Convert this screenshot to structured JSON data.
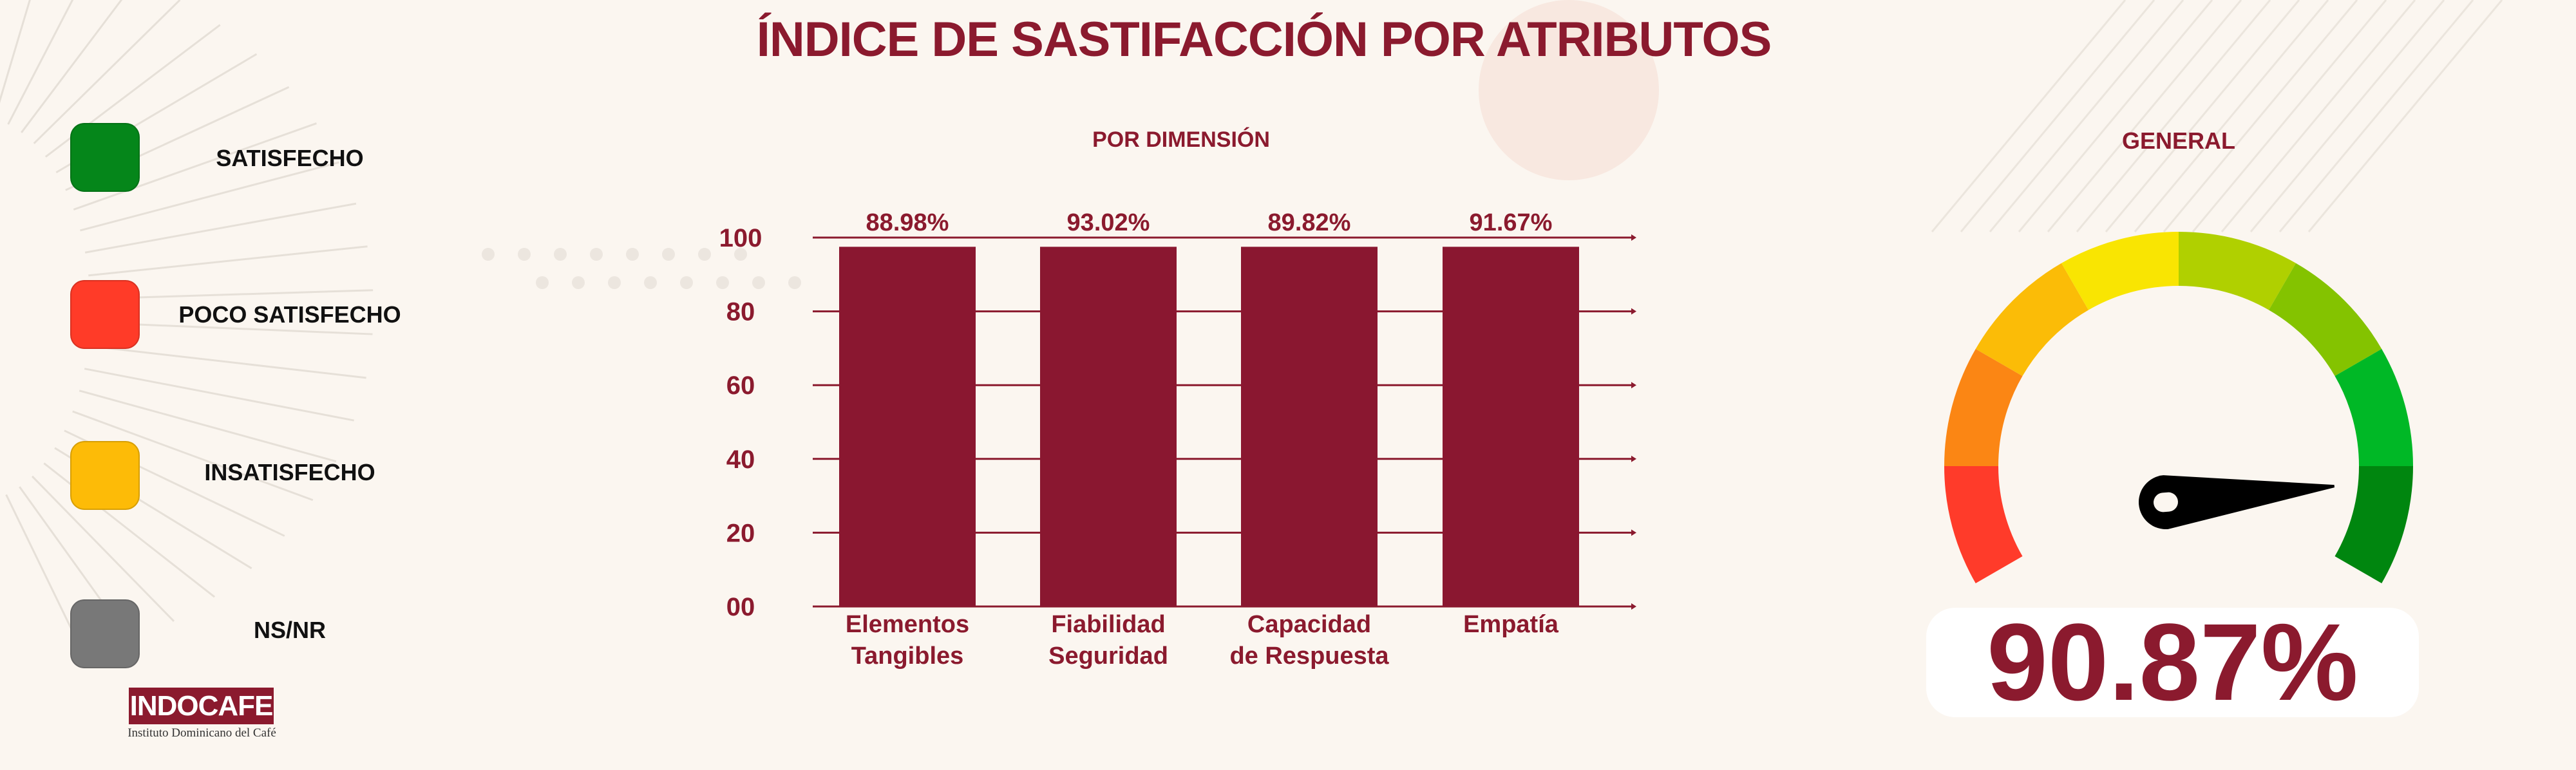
{
  "title": "ÍNDICE DE SASTIFACCIÓN POR ATRIBUTOS",
  "legend": [
    {
      "label": "SATISFECHO",
      "color": "#05861a"
    },
    {
      "label": "POCO SATISFECHO",
      "color": "#ff3b28"
    },
    {
      "label": "INSATISFECHO",
      "color": "#fdbb07"
    },
    {
      "label": "NS/NR",
      "color": "#787878"
    }
  ],
  "logo": {
    "name": "INDOCAFE",
    "subtitle": "Instituto Dominicano del Café"
  },
  "chart_data": [
    {
      "type": "bar",
      "title": "POR DIMENSIÓN",
      "categories": [
        [
          "Elementos",
          "Tangibles"
        ],
        [
          "Fiabilidad",
          "Seguridad"
        ],
        [
          "Capacidad",
          "de Respuesta"
        ],
        [
          "Empatía"
        ]
      ],
      "values": [
        88.98,
        93.02,
        89.82,
        91.67
      ],
      "value_labels": [
        "88.98%",
        "93.02%",
        "89.82%",
        "91.67%"
      ],
      "displayed_bar_level": 97.5,
      "yticks": [
        "100",
        "80",
        "60",
        "40",
        "20",
        "00"
      ],
      "ytick_values": [
        100,
        80,
        60,
        40,
        20,
        0
      ],
      "ylim": [
        0,
        100
      ],
      "grid": true,
      "bar_color": "#8a1730"
    },
    {
      "type": "gauge",
      "title": "GENERAL",
      "value": 90.87,
      "value_label": "90.87%",
      "segment_colors": [
        "#ff3b2a",
        "#fb8614",
        "#fbbc07",
        "#f9e502",
        "#b0d000",
        "#84c300",
        "#00b826",
        "#00860f"
      ]
    }
  ]
}
